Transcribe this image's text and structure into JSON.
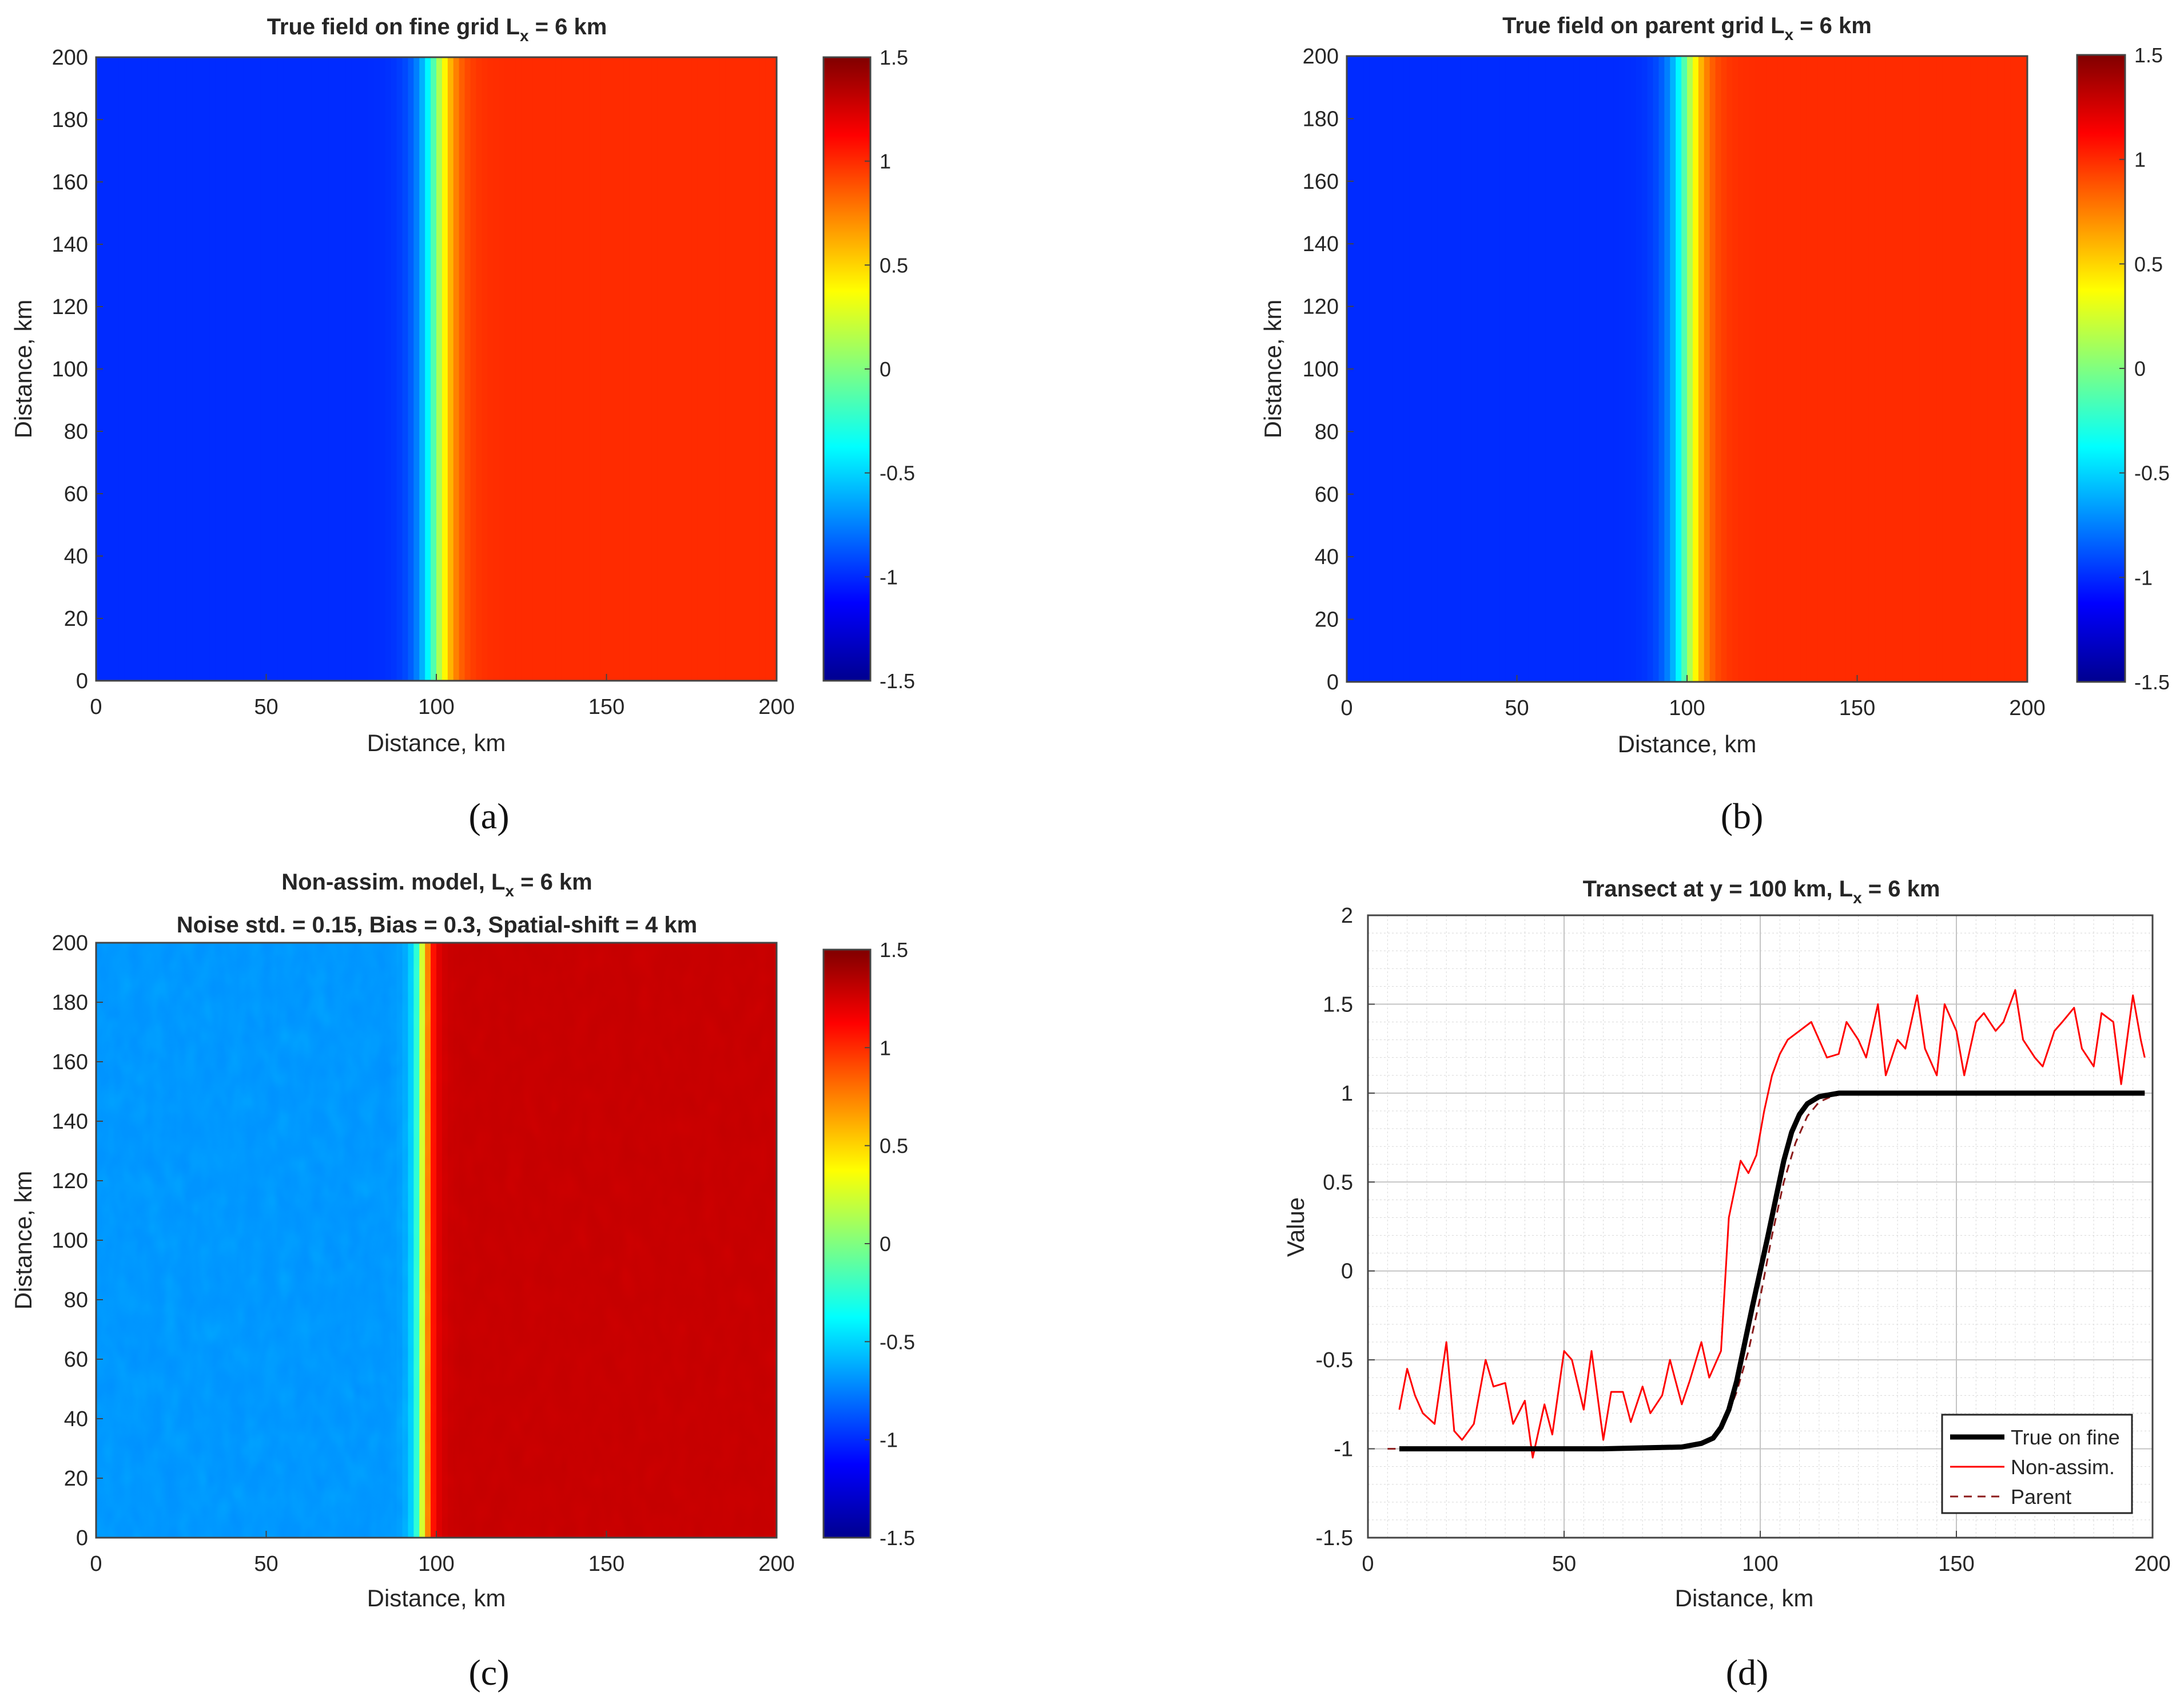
{
  "figure": {
    "panels": {
      "a": {
        "label": "(a)"
      },
      "b": {
        "label": "(b)"
      },
      "c": {
        "label": "(c)"
      },
      "d": {
        "label": "(d)"
      }
    }
  },
  "colormap": {
    "stops": [
      "#00008f",
      "#0000ff",
      "#0080ff",
      "#00ffff",
      "#80ff80",
      "#ffff00",
      "#ff8000",
      "#ff0000",
      "#800000"
    ]
  },
  "chart_data": [
    {
      "id": "a",
      "type": "heatmap",
      "title_main": "True field on fine grid L",
      "title_sub": "x",
      "title_tail": " = 6 km",
      "xlabel": "Distance, km",
      "ylabel": "Distance, km",
      "xlim": [
        0,
        200
      ],
      "ylim": [
        0,
        200
      ],
      "xticks": [
        "0",
        "50",
        "100",
        "150",
        "200"
      ],
      "yticks": [
        "0",
        "20",
        "40",
        "60",
        "80",
        "100",
        "120",
        "140",
        "160",
        "180",
        "200"
      ],
      "clim": [
        -1.5,
        1.5
      ],
      "cticks": [
        "-1.5",
        "-1",
        "-0.5",
        "0",
        "0.5",
        "1",
        "1.5"
      ],
      "field": {
        "low": -1.0,
        "high": 1.0,
        "front_center_km": 100,
        "front_width_km": 6
      }
    },
    {
      "id": "b",
      "type": "heatmap",
      "title_main": "True field on parent grid L",
      "title_sub": "x",
      "title_tail": " = 6 km",
      "xlabel": "Distance, km",
      "ylabel": "Distance, km",
      "xlim": [
        0,
        200
      ],
      "ylim": [
        0,
        200
      ],
      "xticks": [
        "0",
        "50",
        "100",
        "150",
        "200"
      ],
      "yticks": [
        "0",
        "20",
        "40",
        "60",
        "80",
        "100",
        "120",
        "140",
        "160",
        "180",
        "200"
      ],
      "clim": [
        -1.5,
        1.5
      ],
      "cticks": [
        "-1.5",
        "-1",
        "-0.5",
        "0",
        "0.5",
        "1",
        "1.5"
      ],
      "field": {
        "low": -1.0,
        "high": 1.0,
        "front_center_km": 100,
        "front_width_km": 6
      }
    },
    {
      "id": "c",
      "type": "heatmap",
      "title_main": "Non-assim. model, L",
      "title_sub": "x",
      "title_tail": " = 6 km",
      "title_line2": "Noise std. = 0.15,  Bias = 0.3,  Spatial-shift = 4 km",
      "xlabel": "Distance, km",
      "ylabel": "Distance, km",
      "xlim": [
        0,
        200
      ],
      "ylim": [
        0,
        200
      ],
      "xticks": [
        "0",
        "50",
        "100",
        "150",
        "200"
      ],
      "yticks": [
        "0",
        "20",
        "40",
        "60",
        "80",
        "100",
        "120",
        "140",
        "160",
        "180",
        "200"
      ],
      "clim": [
        -1.5,
        1.5
      ],
      "cticks": [
        "-1.5",
        "-1",
        "-0.5",
        "0",
        "0.5",
        "1",
        "1.5"
      ],
      "field": {
        "low": -0.7,
        "high": 1.3,
        "front_center_km": 96,
        "front_width_km": 3,
        "noise_std": 0.15
      }
    },
    {
      "id": "d",
      "type": "line",
      "title_main": "Transect at y = 100 km, L",
      "title_sub": "x",
      "title_tail": " = 6 km",
      "xlabel": "Distance, km",
      "ylabel": "Value",
      "xlim": [
        0,
        200
      ],
      "ylim": [
        -1.5,
        2
      ],
      "xticks": [
        "0",
        "50",
        "100",
        "150",
        "200"
      ],
      "yticks": [
        "-1.5",
        "-1",
        "-0.5",
        "0",
        "0.5",
        "1",
        "1.5",
        "2"
      ],
      "grid": true,
      "legend_position": "bottom-right",
      "series": [
        {
          "name": "True on fine",
          "color": "#000000",
          "style": "solid-thick",
          "x": [
            8,
            20,
            40,
            60,
            80,
            85,
            88,
            90,
            92,
            94,
            96,
            98,
            100,
            102,
            104,
            106,
            108,
            110,
            112,
            115,
            120,
            140,
            160,
            180,
            198
          ],
          "y": [
            -1,
            -1,
            -1,
            -1,
            -0.99,
            -0.97,
            -0.94,
            -0.88,
            -0.78,
            -0.62,
            -0.41,
            -0.2,
            0,
            0.2,
            0.41,
            0.62,
            0.78,
            0.88,
            0.94,
            0.98,
            1,
            1,
            1,
            1,
            1
          ]
        },
        {
          "name": "Non-assim.",
          "color": "#ff0000",
          "style": "solid-thin",
          "x": [
            8,
            10,
            12,
            14,
            17,
            20,
            22,
            24,
            27,
            30,
            32,
            35,
            37,
            40,
            42,
            45,
            47,
            50,
            52,
            55,
            57,
            60,
            62,
            65,
            67,
            70,
            72,
            75,
            77,
            80,
            82,
            85,
            87,
            90,
            92,
            95,
            97,
            99,
            101,
            103,
            105,
            107,
            110,
            113,
            117,
            120,
            122,
            125,
            127,
            130,
            132,
            135,
            137,
            140,
            142,
            145,
            147,
            150,
            152,
            155,
            157,
            160,
            162,
            165,
            167,
            170,
            172,
            175,
            177,
            180,
            182,
            185,
            187,
            190,
            192,
            195,
            197,
            198
          ],
          "y": [
            -0.78,
            -0.55,
            -0.7,
            -0.8,
            -0.86,
            -0.4,
            -0.9,
            -0.95,
            -0.86,
            -0.5,
            -0.65,
            -0.63,
            -0.86,
            -0.73,
            -1.05,
            -0.75,
            -0.92,
            -0.45,
            -0.5,
            -0.78,
            -0.45,
            -0.95,
            -0.68,
            -0.68,
            -0.85,
            -0.65,
            -0.8,
            -0.7,
            -0.5,
            -0.75,
            -0.62,
            -0.4,
            -0.6,
            -0.45,
            0.3,
            0.62,
            0.55,
            0.65,
            0.9,
            1.1,
            1.22,
            1.3,
            1.35,
            1.4,
            1.2,
            1.22,
            1.4,
            1.3,
            1.2,
            1.5,
            1.1,
            1.3,
            1.25,
            1.55,
            1.25,
            1.1,
            1.5,
            1.35,
            1.1,
            1.4,
            1.45,
            1.35,
            1.4,
            1.58,
            1.3,
            1.2,
            1.15,
            1.35,
            1.4,
            1.48,
            1.25,
            1.15,
            1.45,
            1.4,
            1.05,
            1.55,
            1.3,
            1.2
          ]
        },
        {
          "name": "Parent",
          "color": "#8b1a1a",
          "style": "dashed",
          "x": [
            5,
            20,
            40,
            60,
            80,
            85,
            88,
            91,
            94,
            97,
            100,
            103,
            106,
            109,
            112,
            115,
            118,
            122,
            140,
            160,
            180,
            198
          ],
          "y": [
            -1,
            -1,
            -1,
            -1,
            -0.99,
            -0.97,
            -0.93,
            -0.85,
            -0.68,
            -0.45,
            -0.15,
            0.2,
            0.5,
            0.72,
            0.87,
            0.95,
            0.98,
            1,
            1,
            1,
            1,
            1
          ]
        }
      ]
    }
  ]
}
